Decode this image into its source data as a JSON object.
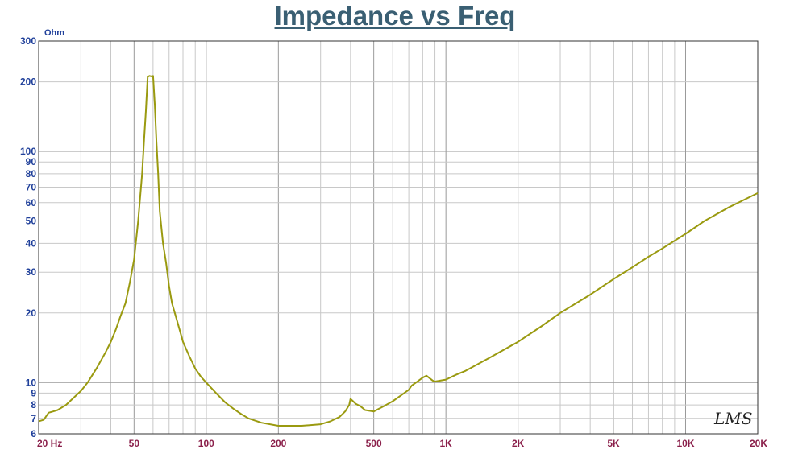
{
  "chart_data": {
    "type": "line",
    "title": "Impedance vs Freq",
    "ylabel": "Ohm",
    "xlabel": "",
    "x_scale": "log",
    "y_scale": "log",
    "xlim": [
      20,
      20000
    ],
    "ylim": [
      6,
      300
    ],
    "grid": true,
    "legend": "none",
    "line_color": "#9a9a10",
    "x_tick_labels": [
      {
        "value": 20,
        "label": "20 Hz"
      },
      {
        "value": 50,
        "label": "50"
      },
      {
        "value": 100,
        "label": "100"
      },
      {
        "value": 200,
        "label": "200"
      },
      {
        "value": 500,
        "label": "500"
      },
      {
        "value": 1000,
        "label": "1K"
      },
      {
        "value": 2000,
        "label": "2K"
      },
      {
        "value": 5000,
        "label": "5K"
      },
      {
        "value": 10000,
        "label": "10K"
      },
      {
        "value": 20000,
        "label": "20K"
      }
    ],
    "y_tick_labels": [
      {
        "value": 6,
        "label": "6"
      },
      {
        "value": 7,
        "label": "7"
      },
      {
        "value": 8,
        "label": "8"
      },
      {
        "value": 9,
        "label": "9"
      },
      {
        "value": 10,
        "label": "10"
      },
      {
        "value": 20,
        "label": "20"
      },
      {
        "value": 30,
        "label": "30"
      },
      {
        "value": 40,
        "label": "40"
      },
      {
        "value": 50,
        "label": "50"
      },
      {
        "value": 60,
        "label": "60"
      },
      {
        "value": 70,
        "label": "70"
      },
      {
        "value": 80,
        "label": "80"
      },
      {
        "value": 90,
        "label": "90"
      },
      {
        "value": 100,
        "label": "100"
      },
      {
        "value": 200,
        "label": "200"
      },
      {
        "value": 300,
        "label": "300"
      }
    ],
    "series": [
      {
        "x": [
          20,
          21,
          22,
          23,
          24,
          26,
          28,
          30,
          32,
          35,
          38,
          40,
          42,
          44,
          46,
          48,
          50,
          52,
          54,
          55,
          56,
          57,
          58,
          59,
          60,
          61,
          62,
          63,
          64,
          66,
          68,
          70,
          72,
          75,
          78,
          80,
          85,
          90,
          95,
          100,
          110,
          120,
          130,
          140,
          150,
          170,
          200,
          250,
          300,
          330,
          360,
          380,
          395,
          400,
          410,
          420,
          440,
          460,
          500,
          550,
          600,
          650,
          700,
          720,
          750,
          780,
          800,
          830,
          860,
          880,
          900,
          1000,
          1100,
          1200,
          1500,
          2000,
          2500,
          3000,
          4000,
          5000,
          6000,
          7000,
          8000,
          10000,
          12000,
          15000,
          20000
        ],
        "y": [
          6.8,
          6.9,
          7.4,
          7.5,
          7.6,
          8,
          8.6,
          9.2,
          10,
          11.6,
          13.5,
          15,
          17,
          19.5,
          22,
          27,
          34,
          50,
          80,
          110,
          150,
          210,
          212,
          211,
          212,
          160,
          110,
          80,
          55,
          40,
          33,
          26,
          22,
          19,
          16.5,
          15,
          13,
          11.5,
          10.6,
          10,
          9,
          8.2,
          7.7,
          7.3,
          7,
          6.7,
          6.5,
          6.5,
          6.6,
          6.8,
          7.1,
          7.5,
          8,
          8.5,
          8.3,
          8.1,
          7.9,
          7.6,
          7.5,
          7.9,
          8.3,
          8.8,
          9.3,
          9.7,
          10,
          10.3,
          10.5,
          10.7,
          10.4,
          10.2,
          10.1,
          10.3,
          10.8,
          11.2,
          12.7,
          15,
          17.5,
          20,
          24,
          28,
          31.5,
          35,
          38,
          44,
          50,
          57,
          66
        ]
      }
    ]
  },
  "watermark_text": "LMS"
}
